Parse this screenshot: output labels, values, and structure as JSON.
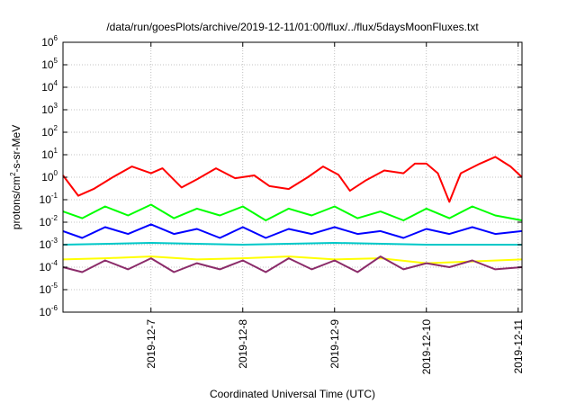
{
  "chart_data": {
    "type": "line",
    "title": "/data/run/goesPlots/archive/2019-12-11/01:00/flux/../flux/5daysMoonFluxes.txt",
    "xlabel": "Coordinated Universal Time (UTC)",
    "ylabel": {
      "base": "protons/cm",
      "sup": "2",
      "rest": "-s-sr-MeV"
    },
    "yscale": "log",
    "ylim": [
      1e-06,
      1000000.0
    ],
    "y_ticks": [
      {
        "value": 1e-06,
        "base": "10",
        "exp": "-6"
      },
      {
        "value": 1e-05,
        "base": "10",
        "exp": "-5"
      },
      {
        "value": 0.0001,
        "base": "10",
        "exp": "-4"
      },
      {
        "value": 0.001,
        "base": "10",
        "exp": "-3"
      },
      {
        "value": 0.01,
        "base": "10",
        "exp": "-2"
      },
      {
        "value": 0.1,
        "base": "10",
        "exp": "-1"
      },
      {
        "value": 1.0,
        "base": "10",
        "exp": "0"
      },
      {
        "value": 10.0,
        "base": "10",
        "exp": "1"
      },
      {
        "value": 100.0,
        "base": "10",
        "exp": "2"
      },
      {
        "value": 1000.0,
        "base": "10",
        "exp": "3"
      },
      {
        "value": 10000.0,
        "base": "10",
        "exp": "4"
      },
      {
        "value": 100000.0,
        "base": "10",
        "exp": "5"
      },
      {
        "value": 1000000.0,
        "base": "10",
        "exp": "6"
      }
    ],
    "xlim": [
      "2019-12-06T01:00",
      "2019-12-11T01:00"
    ],
    "x_ticks": [
      {
        "date": "2019-12-07T00:00",
        "label": "2019-12-7"
      },
      {
        "date": "2019-12-08T00:00",
        "label": "2019-12-8"
      },
      {
        "date": "2019-12-09T00:00",
        "label": "2019-12-9"
      },
      {
        "date": "2019-12-10T00:00",
        "label": "2019-12-10"
      },
      {
        "date": "2019-12-11T00:00",
        "label": "2019-12-11"
      }
    ],
    "grid": true,
    "legend": "none",
    "series": [
      {
        "color": "#ff0000",
        "x": [
          "2019-12-06T01:00",
          "2019-12-06T05:00",
          "2019-12-06T09:00",
          "2019-12-06T14:00",
          "2019-12-06T19:00",
          "2019-12-07T00:00",
          "2019-12-07T03:00",
          "2019-12-07T08:00",
          "2019-12-07T12:00",
          "2019-12-07T17:00",
          "2019-12-07T22:00",
          "2019-12-08T03:00",
          "2019-12-08T07:00",
          "2019-12-08T12:00",
          "2019-12-08T17:00",
          "2019-12-08T21:00",
          "2019-12-09T01:00",
          "2019-12-09T04:00",
          "2019-12-09T08:00",
          "2019-12-09T13:00",
          "2019-12-09T18:00",
          "2019-12-09T21:00",
          "2019-12-10T00:00",
          "2019-12-10T03:00",
          "2019-12-10T06:00",
          "2019-12-10T09:00",
          "2019-12-10T14:00",
          "2019-12-10T18:00",
          "2019-12-10T22:00",
          "2019-12-11T01:00"
        ],
        "values": [
          1.2,
          0.15,
          0.3,
          1.0,
          3.0,
          1.5,
          2.5,
          0.35,
          0.8,
          2.5,
          0.9,
          1.2,
          0.4,
          0.3,
          1.0,
          3.0,
          1.3,
          0.25,
          0.7,
          2.0,
          1.5,
          4.0,
          4.0,
          1.5,
          0.08,
          1.5,
          4.0,
          8.0,
          3.0,
          1.0
        ]
      },
      {
        "color": "#00ff00",
        "x": [
          "2019-12-06T01:00",
          "2019-12-06T06:00",
          "2019-12-06T12:00",
          "2019-12-06T18:00",
          "2019-12-07T00:00",
          "2019-12-07T06:00",
          "2019-12-07T12:00",
          "2019-12-07T18:00",
          "2019-12-08T00:00",
          "2019-12-08T06:00",
          "2019-12-08T12:00",
          "2019-12-08T18:00",
          "2019-12-09T00:00",
          "2019-12-09T06:00",
          "2019-12-09T12:00",
          "2019-12-09T18:00",
          "2019-12-10T00:00",
          "2019-12-10T06:00",
          "2019-12-10T12:00",
          "2019-12-10T18:00",
          "2019-12-11T01:00"
        ],
        "values": [
          0.03,
          0.015,
          0.05,
          0.02,
          0.06,
          0.015,
          0.04,
          0.02,
          0.05,
          0.012,
          0.04,
          0.02,
          0.05,
          0.015,
          0.03,
          0.012,
          0.04,
          0.015,
          0.05,
          0.02,
          0.012
        ]
      },
      {
        "color": "#0000ff",
        "x": [
          "2019-12-06T01:00",
          "2019-12-06T06:00",
          "2019-12-06T12:00",
          "2019-12-06T18:00",
          "2019-12-07T00:00",
          "2019-12-07T06:00",
          "2019-12-07T12:00",
          "2019-12-07T18:00",
          "2019-12-08T00:00",
          "2019-12-08T06:00",
          "2019-12-08T12:00",
          "2019-12-08T18:00",
          "2019-12-09T00:00",
          "2019-12-09T06:00",
          "2019-12-09T12:00",
          "2019-12-09T18:00",
          "2019-12-10T00:00",
          "2019-12-10T06:00",
          "2019-12-10T12:00",
          "2019-12-10T18:00",
          "2019-12-11T01:00"
        ],
        "values": [
          0.004,
          0.002,
          0.006,
          0.003,
          0.008,
          0.003,
          0.005,
          0.002,
          0.006,
          0.002,
          0.005,
          0.003,
          0.006,
          0.003,
          0.004,
          0.002,
          0.005,
          0.003,
          0.006,
          0.003,
          0.004
        ]
      },
      {
        "color": "#00c8c8",
        "x": [
          "2019-12-06T01:00",
          "2019-12-07T00:00",
          "2019-12-08T00:00",
          "2019-12-09T00:00",
          "2019-12-10T00:00",
          "2019-12-11T01:00"
        ],
        "values": [
          0.001,
          0.0012,
          0.001,
          0.0012,
          0.001,
          0.001
        ]
      },
      {
        "color": "#ffff00",
        "x": [
          "2019-12-06T01:00",
          "2019-12-06T12:00",
          "2019-12-07T00:00",
          "2019-12-07T12:00",
          "2019-12-08T00:00",
          "2019-12-08T12:00",
          "2019-12-09T00:00",
          "2019-12-09T12:00",
          "2019-12-10T00:00",
          "2019-12-10T12:00",
          "2019-12-11T01:00"
        ],
        "values": [
          0.00022,
          0.00025,
          0.0003,
          0.00022,
          0.00025,
          0.0003,
          0.00022,
          0.00025,
          0.00015,
          0.00018,
          0.00022
        ]
      },
      {
        "color": "#8b2c6a",
        "x": [
          "2019-12-06T01:00",
          "2019-12-06T06:00",
          "2019-12-06T12:00",
          "2019-12-06T18:00",
          "2019-12-07T00:00",
          "2019-12-07T06:00",
          "2019-12-07T12:00",
          "2019-12-07T18:00",
          "2019-12-08T00:00",
          "2019-12-08T06:00",
          "2019-12-08T12:00",
          "2019-12-08T18:00",
          "2019-12-09T00:00",
          "2019-12-09T06:00",
          "2019-12-09T12:00",
          "2019-12-09T18:00",
          "2019-12-10T00:00",
          "2019-12-10T06:00",
          "2019-12-10T12:00",
          "2019-12-10T18:00",
          "2019-12-11T01:00"
        ],
        "values": [
          0.0001,
          6e-05,
          0.0002,
          8e-05,
          0.00025,
          6e-05,
          0.00015,
          8e-05,
          0.0002,
          6e-05,
          0.00025,
          8e-05,
          0.0002,
          6e-05,
          0.0003,
          8e-05,
          0.00015,
          0.0001,
          0.0002,
          8e-05,
          0.0001
        ]
      }
    ]
  }
}
